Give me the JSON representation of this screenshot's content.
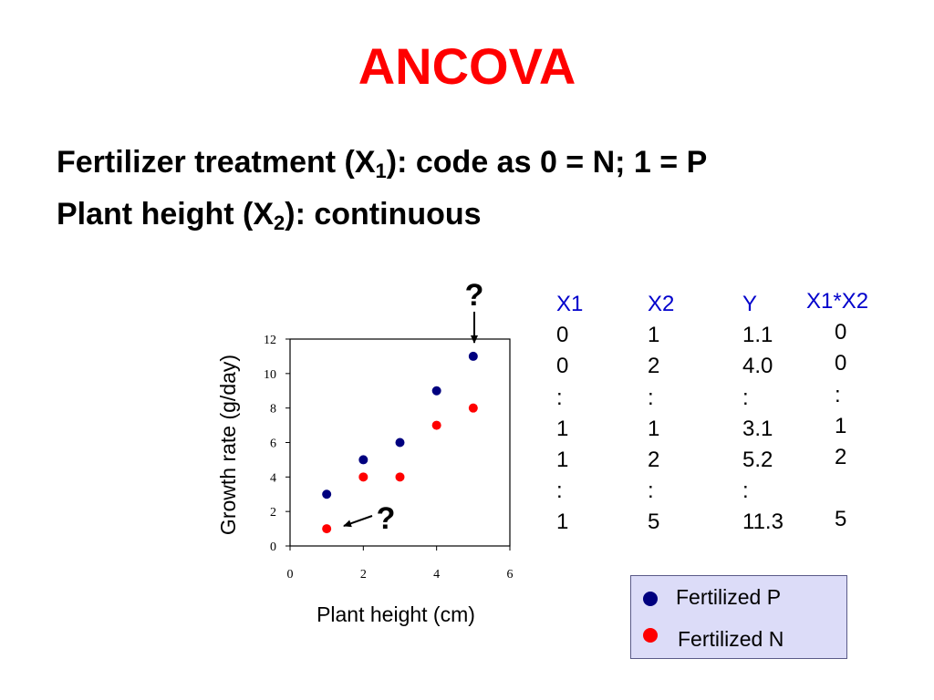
{
  "slide": {
    "title": "ANCOVA",
    "line1": {
      "pre": "Fertilizer treatment (X",
      "sub": "1",
      "post": "): code as 0 = N; 1 = P"
    },
    "line2": {
      "pre": "Plant height (X",
      "sub": "2",
      "post": "): continuous"
    }
  },
  "table": {
    "columns": [
      {
        "header": "X1",
        "values": [
          "0",
          "0",
          ":",
          "1",
          "1",
          ":",
          "1"
        ]
      },
      {
        "header": "X2",
        "values": [
          "1",
          "2",
          ":",
          "1",
          "2",
          ":",
          "5"
        ]
      },
      {
        "header": "Y",
        "values": [
          "1.1",
          "4.0",
          ":",
          "3.1",
          "5.2",
          ":",
          "11.3"
        ]
      },
      {
        "header": "X1*X2",
        "values": [
          "0",
          "0",
          ":",
          "1",
          "2",
          "",
          "5"
        ]
      }
    ]
  },
  "legend": {
    "items": [
      {
        "label": "Fertilized P",
        "color": "#00007f"
      },
      {
        "label": "Fertilized N",
        "color": "#ff0000"
      }
    ]
  },
  "chart_data": {
    "type": "scatter",
    "xlabel": "Plant height (cm)",
    "ylabel": "Growth rate (g/day)",
    "xlim": [
      0,
      6
    ],
    "ylim": [
      0,
      12
    ],
    "x_ticks": [
      "0",
      "2",
      "4",
      "6"
    ],
    "y_ticks": [
      "0",
      "2",
      "4",
      "6",
      "8",
      "10",
      "12"
    ],
    "grid": false,
    "series": [
      {
        "name": "Fertilized P",
        "color": "#00007f",
        "points": [
          [
            1,
            3
          ],
          [
            2,
            5
          ],
          [
            3,
            6
          ],
          [
            4,
            9
          ],
          [
            5,
            11
          ]
        ]
      },
      {
        "name": "Fertilized N",
        "color": "#ff0000",
        "points": [
          [
            1,
            1
          ],
          [
            2,
            4
          ],
          [
            3,
            4
          ],
          [
            4,
            7
          ],
          [
            5,
            8
          ]
        ]
      }
    ],
    "annotations": [
      {
        "text": "?",
        "target": [
          5,
          11
        ]
      },
      {
        "text": "?",
        "target": [
          1,
          1
        ]
      }
    ]
  }
}
